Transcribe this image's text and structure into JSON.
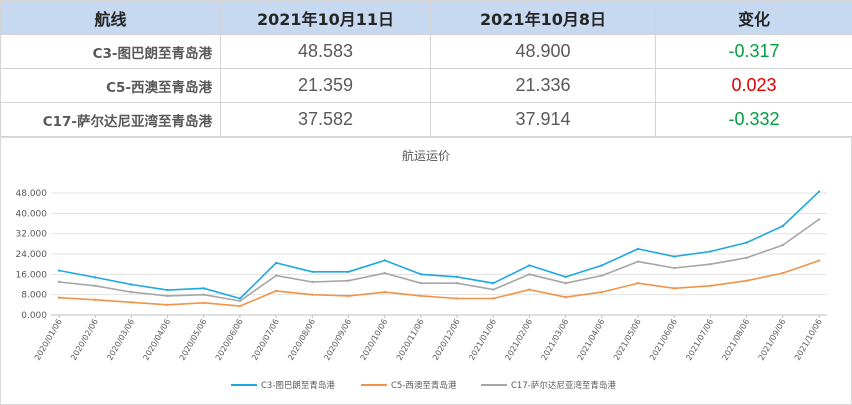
{
  "table": {
    "headers": [
      "航线",
      "2021年10月11日",
      "2021年10月8日",
      "变化"
    ],
    "rows": [
      {
        "route": "C3-图巴朗至青岛港",
        "current": "48.583",
        "previous": "48.900",
        "change": "-0.317",
        "direction": "down"
      },
      {
        "route": "C5-西澳至青岛港",
        "current": "21.359",
        "previous": "21.336",
        "change": "0.023",
        "direction": "up"
      },
      {
        "route": "C17-萨尔达尼亚湾至青岛港",
        "current": "37.582",
        "previous": "37.914",
        "change": "-0.332",
        "direction": "down"
      }
    ],
    "colors": {
      "up": "#e00000",
      "down": "#00a040",
      "header_bg": "#c6d9f1"
    }
  },
  "chart_data": {
    "type": "line",
    "title": "航运运价",
    "xlabel": "",
    "ylabel": "",
    "ylim": [
      0,
      48
    ],
    "yticks": [
      "0.000",
      "8.000",
      "16.000",
      "24.000",
      "32.000",
      "40.000",
      "48.000"
    ],
    "grid": true,
    "legend_position": "bottom",
    "x": [
      "2020/01/06",
      "2020/02/06",
      "2020/03/06",
      "2020/04/06",
      "2020/05/06",
      "2020/06/06",
      "2020/07/06",
      "2020/08/06",
      "2020/09/06",
      "2020/10/06",
      "2020/11/06",
      "2020/12/06",
      "2021/01/06",
      "2021/02/06",
      "2021/03/06",
      "2021/04/06",
      "2021/05/06",
      "2021/06/06",
      "2021/07/06",
      "2021/08/06",
      "2021/09/06",
      "2021/10/06"
    ],
    "series": [
      {
        "name": "C3-图巴朗至青岛港",
        "color": "#1fa8e0",
        "values": [
          17.5,
          14.8,
          12.0,
          9.8,
          10.5,
          6.5,
          20.5,
          17.0,
          17.0,
          21.5,
          16.0,
          15.0,
          12.5,
          19.5,
          15.0,
          19.5,
          26.0,
          23.0,
          25.0,
          28.5,
          35.0,
          48.5
        ]
      },
      {
        "name": "C5-西澳至青岛港",
        "color": "#f0944a",
        "values": [
          6.8,
          6.0,
          5.0,
          4.0,
          4.8,
          3.5,
          9.5,
          8.0,
          7.5,
          9.0,
          7.5,
          6.5,
          6.5,
          10.0,
          7.0,
          9.0,
          12.5,
          10.5,
          11.5,
          13.5,
          16.5,
          21.4
        ]
      },
      {
        "name": "C17-萨尔达尼亚湾至青岛港",
        "color": "#a6a6a6",
        "values": [
          13.0,
          11.5,
          9.0,
          7.5,
          8.0,
          5.5,
          15.5,
          13.0,
          13.5,
          16.5,
          12.5,
          12.5,
          10.0,
          16.0,
          12.5,
          15.5,
          21.0,
          18.5,
          20.0,
          22.5,
          27.5,
          37.6
        ]
      }
    ]
  }
}
